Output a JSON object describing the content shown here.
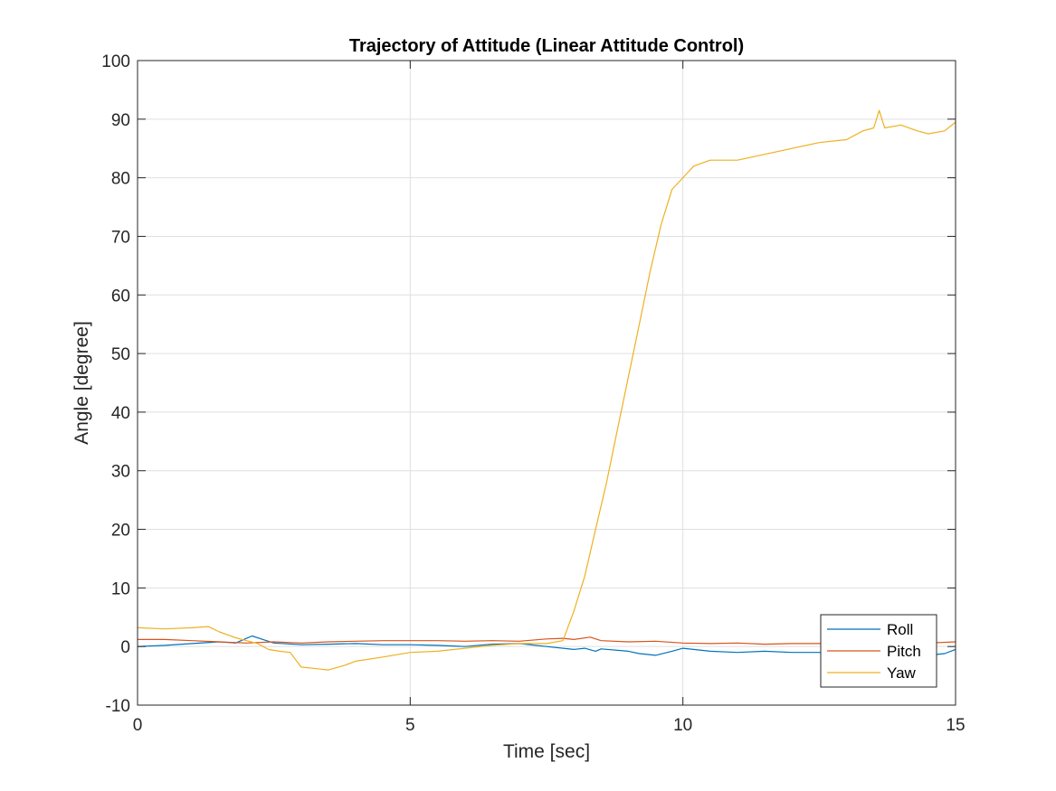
{
  "chart_data": {
    "type": "line",
    "title": "Trajectory of Attitude (Linear Attitude Control)",
    "xlabel": "Time [sec]",
    "ylabel": "Angle [degree]",
    "xlim": [
      0,
      15
    ],
    "ylim": [
      -10,
      100
    ],
    "xticks": [
      0,
      5,
      10,
      15
    ],
    "xtick_labels": [
      "0",
      "5",
      "10",
      "15"
    ],
    "yticks": [
      -10,
      0,
      10,
      20,
      30,
      40,
      50,
      60,
      70,
      80,
      90,
      100
    ],
    "ytick_labels": [
      "-10",
      "0",
      "10",
      "20",
      "30",
      "40",
      "50",
      "60",
      "70",
      "80",
      "90",
      "100"
    ],
    "grid": true,
    "legend_position": "bottom-right",
    "series": [
      {
        "name": "Roll",
        "color": "#0072BD",
        "x": [
          0,
          0.5,
          1.0,
          1.5,
          1.8,
          2.0,
          2.1,
          2.3,
          2.5,
          3.0,
          3.5,
          4.0,
          4.5,
          5.0,
          5.5,
          6.0,
          6.5,
          7.0,
          7.5,
          8.0,
          8.2,
          8.4,
          8.5,
          9.0,
          9.2,
          9.5,
          9.8,
          10.0,
          10.5,
          11.0,
          11.5,
          12.0,
          12.5,
          13.0,
          13.5,
          14.0,
          14.5,
          14.8,
          15.0
        ],
        "y": [
          0,
          0.2,
          0.5,
          0.8,
          0.6,
          1.4,
          1.8,
          1.2,
          0.6,
          0.3,
          0.4,
          0.5,
          0.3,
          0.3,
          0.2,
          0,
          0.4,
          0.5,
          0,
          -0.5,
          -0.3,
          -0.8,
          -0.4,
          -0.8,
          -1.2,
          -1.5,
          -0.8,
          -0.3,
          -0.8,
          -1.0,
          -0.8,
          -1.0,
          -1.0,
          -1.2,
          -1.1,
          -1.0,
          -1.5,
          -1.2,
          -0.5
        ]
      },
      {
        "name": "Pitch",
        "color": "#D95319",
        "x": [
          0,
          0.5,
          1.0,
          1.5,
          2.0,
          2.5,
          3.0,
          3.5,
          4.0,
          4.5,
          5.0,
          5.5,
          6.0,
          6.5,
          7.0,
          7.5,
          7.8,
          8.0,
          8.3,
          8.5,
          9.0,
          9.5,
          10.0,
          10.5,
          11.0,
          11.5,
          12.0,
          12.5,
          13.0,
          13.5,
          14.0,
          14.5,
          15.0
        ],
        "y": [
          1.2,
          1.2,
          1.0,
          0.8,
          0.6,
          0.8,
          0.6,
          0.8,
          0.9,
          1.0,
          1.0,
          1.0,
          0.9,
          1.0,
          0.9,
          1.3,
          1.4,
          1.2,
          1.6,
          1.0,
          0.8,
          0.9,
          0.6,
          0.5,
          0.6,
          0.4,
          0.5,
          0.5,
          0.6,
          0.5,
          0.6,
          0.6,
          0.8
        ]
      },
      {
        "name": "Yaw",
        "color": "#EDB120",
        "x": [
          0,
          0.5,
          1.0,
          1.3,
          1.5,
          1.8,
          2.0,
          2.2,
          2.4,
          2.6,
          2.8,
          3.0,
          3.3,
          3.5,
          3.8,
          4.0,
          4.5,
          5.0,
          5.5,
          6.0,
          6.5,
          7.0,
          7.5,
          7.8,
          8.0,
          8.2,
          8.4,
          8.6,
          8.8,
          9.0,
          9.2,
          9.4,
          9.6,
          9.8,
          10.0,
          10.2,
          10.5,
          11.0,
          11.5,
          12.0,
          12.5,
          13.0,
          13.3,
          13.5,
          13.6,
          13.7,
          14.0,
          14.3,
          14.5,
          14.8,
          15.0
        ],
        "y": [
          3.2,
          3.0,
          3.2,
          3.4,
          2.5,
          1.5,
          1.0,
          0.5,
          -0.5,
          -0.8,
          -1.0,
          -3.5,
          -3.8,
          -4.0,
          -3.2,
          -2.5,
          -1.8,
          -1.0,
          -0.8,
          -0.3,
          0.2,
          0.5,
          0.5,
          1.0,
          6.0,
          12.0,
          20.0,
          28.0,
          37.0,
          46.0,
          55.0,
          64.0,
          72.0,
          78.0,
          80.0,
          82.0,
          83.0,
          83.0,
          84.0,
          85.0,
          86.0,
          86.5,
          88.0,
          88.5,
          91.5,
          88.5,
          89.0,
          88.0,
          87.5,
          88.0,
          89.5
        ]
      }
    ]
  }
}
